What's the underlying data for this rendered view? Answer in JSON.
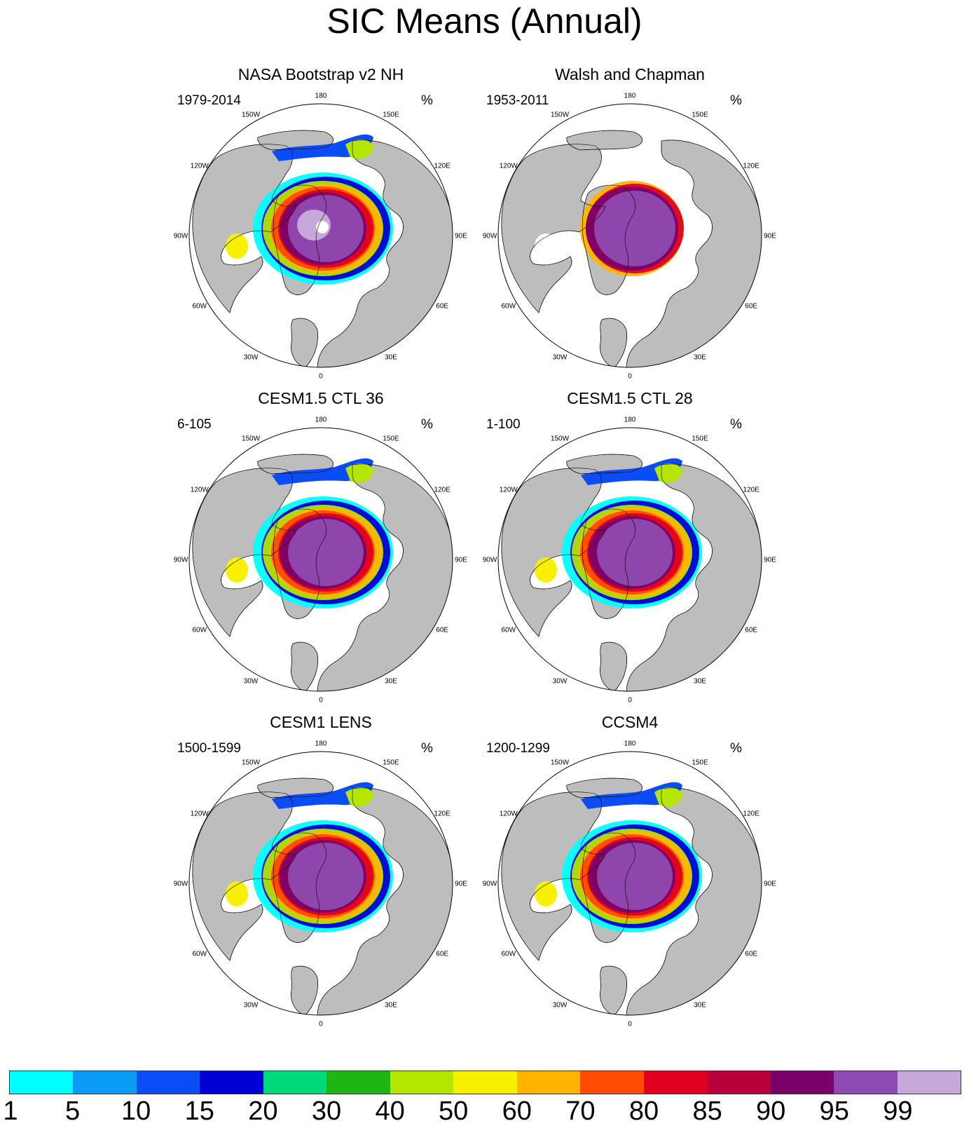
{
  "title": "SIC Means (Annual)",
  "longitude_labels": {
    "n": "180",
    "nne": "150E",
    "ene": "120E",
    "e": "90E",
    "ese": "60E",
    "sse": "30E",
    "s": "0",
    "ssw": "30W",
    "wsw": "60W",
    "w": "90W",
    "wnw": "120W",
    "nnw": "150W"
  },
  "panels": [
    {
      "title": "NASA Bootstrap v2 NH",
      "period": "1979-2014",
      "unit": "%"
    },
    {
      "title": "Walsh and Chapman",
      "period": "1953-2011",
      "unit": "%"
    },
    {
      "title": "CESM1.5 CTL 36",
      "period": "6-105",
      "unit": "%"
    },
    {
      "title": "CESM1.5 CTL 28",
      "period": "1-100",
      "unit": "%"
    },
    {
      "title": "CESM1 LENS",
      "period": "1500-1599",
      "unit": "%"
    },
    {
      "title": "CCSM4",
      "period": "1200-1299",
      "unit": "%"
    }
  ],
  "colorbar": {
    "labels": [
      "1",
      "5",
      "10",
      "15",
      "20",
      "30",
      "40",
      "50",
      "60",
      "70",
      "80",
      "85",
      "90",
      "95",
      "99"
    ],
    "colors": [
      "#00ffff",
      "#0a9cf5",
      "#0a4cf5",
      "#0000d5",
      "#00d87c",
      "#1eb614",
      "#b4e600",
      "#f7f000",
      "#ffb400",
      "#ff4c00",
      "#e0001e",
      "#b7003a",
      "#7a006a",
      "#8e4ab1",
      "#c7a8da"
    ]
  },
  "map_colors": {
    "land": "#bdbdbd",
    "ocean": "#ffffff"
  }
}
